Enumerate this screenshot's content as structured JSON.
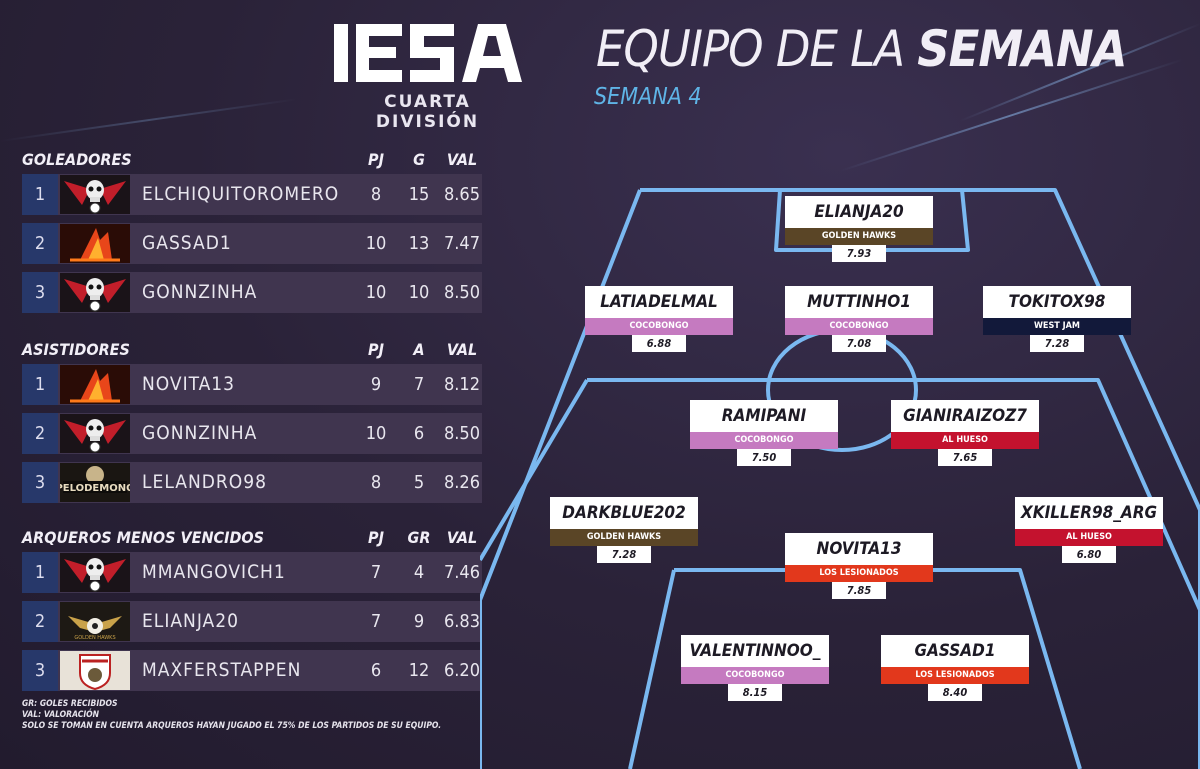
{
  "header": {
    "logo_text": "IESA",
    "division": "CUARTA DIVISIÓN",
    "title_light": "EQUIPO DE LA ",
    "title_bold": "SEMANA",
    "week": "SEMANA 4"
  },
  "colors": {
    "background": "#2a2238",
    "rank_bg": "#27386a",
    "row_bg": "#40354f",
    "pitch_line": "#7ab8f0",
    "team_golden_hawks": "#5a4526",
    "team_cocobongo": "#c57ac0",
    "team_west_jam": "#12193a",
    "team_al_hueso": "#c4122e",
    "team_los_lesionados": "#e2381c"
  },
  "scorers": {
    "title": "GOLEADORES",
    "cols": [
      "PJ",
      "G",
      "VAL"
    ],
    "rows": [
      {
        "rank": "1",
        "badge": "skull-badge-icon",
        "name": "ELCHIQUITOROMERO",
        "pj": "8",
        "v": "15",
        "val": "8.65"
      },
      {
        "rank": "2",
        "badge": "fire-badge-icon",
        "name": "GASSAD1",
        "pj": "10",
        "v": "13",
        "val": "7.47"
      },
      {
        "rank": "3",
        "badge": "skull-badge-icon",
        "name": "GONNZINHA",
        "pj": "10",
        "v": "10",
        "val": "8.50"
      }
    ]
  },
  "assists": {
    "title": "ASISTIDORES",
    "cols": [
      "PJ",
      "A",
      "VAL"
    ],
    "rows": [
      {
        "rank": "1",
        "badge": "fire-badge-icon",
        "name": "NOVITA13",
        "pj": "9",
        "v": "7",
        "val": "8.12"
      },
      {
        "rank": "2",
        "badge": "skull-badge-icon",
        "name": "GONNZINHA",
        "pj": "10",
        "v": "6",
        "val": "8.50"
      },
      {
        "rank": "3",
        "badge": "pelodemono-badge-icon",
        "name": "LELANDRO98",
        "pj": "8",
        "v": "5",
        "val": "8.26"
      }
    ]
  },
  "keepers": {
    "title": "ARQUEROS MENOS VENCIDOS",
    "cols": [
      "PJ",
      "GR",
      "VAL"
    ],
    "rows": [
      {
        "rank": "1",
        "badge": "skull-badge-icon",
        "name": "MMANGOVICH1",
        "pj": "7",
        "v": "4",
        "val": "7.46"
      },
      {
        "rank": "2",
        "badge": "hawk-badge-icon",
        "name": "ELIANJA20",
        "pj": "7",
        "v": "9",
        "val": "6.83"
      },
      {
        "rank": "3",
        "badge": "shield-badge-icon",
        "name": "MAXFERSTAPPEN",
        "pj": "6",
        "v": "12",
        "val": "6.20"
      }
    ]
  },
  "badge_labels": {
    "pelodemono": "PELODEMONO",
    "hawks": "GOLDEN HAWKS"
  },
  "notes": [
    "GR: GOLES RECIBIDOS",
    "VAL: VALORACIÓN",
    "SOLO SE TOMAN EN CUENTA ARQUEROS HAYAN JUGADO EL 75% DE LOS PARTIDOS DE SU EQUIPO."
  ],
  "lineup": [
    {
      "name": "ELIANJA20",
      "team": "GOLDEN HAWKS",
      "team_color": "#5a4526",
      "rating": "7.93"
    },
    {
      "name": "LATIADELMAL",
      "team": "COCOBONGO",
      "team_color": "#c57ac0",
      "rating": "6.88"
    },
    {
      "name": "MUTTINHO1",
      "team": "COCOBONGO",
      "team_color": "#c57ac0",
      "rating": "7.08"
    },
    {
      "name": "TOKITOX98",
      "team": "WEST JAM",
      "team_color": "#12193a",
      "rating": "7.28"
    },
    {
      "name": "RAMIPANI",
      "team": "COCOBONGO",
      "team_color": "#c57ac0",
      "rating": "7.50"
    },
    {
      "name": "GIANIRAIZOZ7",
      "team": "AL HUESO",
      "team_color": "#c4122e",
      "rating": "7.65"
    },
    {
      "name": "DARKBLUE202",
      "team": "GOLDEN HAWKS",
      "team_color": "#5a4526",
      "rating": "7.28"
    },
    {
      "name": "XKILLER98_ARG",
      "team": "AL HUESO",
      "team_color": "#c4122e",
      "rating": "6.80"
    },
    {
      "name": "NOVITA13",
      "team": "LOS LESIONADOS",
      "team_color": "#e2381c",
      "rating": "7.85"
    },
    {
      "name": "VALENTINNOO_",
      "team": "COCOBONGO",
      "team_color": "#c57ac0",
      "rating": "8.15"
    },
    {
      "name": "GASSAD1",
      "team": "LOS LESIONADOS",
      "team_color": "#e2381c",
      "rating": "8.40"
    }
  ]
}
